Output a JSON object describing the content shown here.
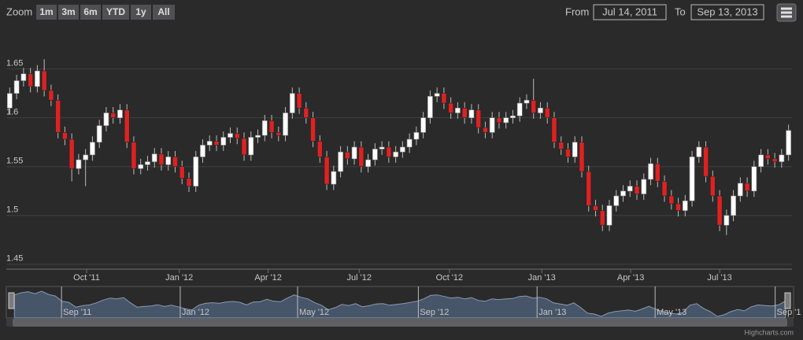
{
  "chart_data": {
    "type": "candlestick",
    "range_selector": {
      "zoom_label": "Zoom",
      "buttons": [
        "1m",
        "3m",
        "6m",
        "YTD",
        "1y",
        "All"
      ],
      "from_label": "From",
      "from_value": "Jul 14, 2011",
      "to_label": "To",
      "to_value": "Sep 13, 2013"
    },
    "up_color": "#ffffff",
    "down_color": "#dd2222",
    "open": [
      1.61,
      1.625,
      1.638,
      1.645,
      1.632,
      1.648,
      1.628,
      1.618,
      1.585,
      1.578,
      1.548,
      1.557,
      1.562,
      1.575,
      1.592,
      1.605,
      1.6,
      1.608,
      1.575,
      1.548,
      1.552,
      1.555,
      1.563,
      1.552,
      1.56,
      1.55,
      1.538,
      1.53,
      1.56,
      1.572,
      1.576,
      1.572,
      1.58,
      1.584,
      1.579,
      1.562,
      1.58,
      1.582,
      1.597,
      1.585,
      1.582,
      1.605,
      1.625,
      1.61,
      1.6,
      1.576,
      1.56,
      1.532,
      1.545,
      1.565,
      1.558,
      1.57,
      1.55,
      1.557,
      1.568,
      1.57,
      1.56,
      1.565,
      1.57,
      1.578,
      1.585,
      1.6,
      1.622,
      1.625,
      1.615,
      1.605,
      1.61,
      1.6,
      1.608,
      1.59,
      1.585,
      1.6,
      1.595,
      1.6,
      1.602,
      1.615,
      1.618,
      1.605,
      1.61,
      1.6,
      1.575,
      1.568,
      1.56,
      1.575,
      1.545,
      1.51,
      1.505,
      1.49,
      1.51,
      1.52,
      1.525,
      1.53,
      1.522,
      1.537,
      1.553,
      1.535,
      1.52,
      1.512,
      1.505,
      1.515,
      1.56,
      1.57,
      1.54,
      1.52,
      1.49,
      1.5,
      1.52,
      1.533,
      1.525,
      1.55,
      1.562,
      1.558,
      1.555,
      1.562
    ],
    "high": [
      1.631,
      1.644,
      1.651,
      1.651,
      1.654,
      1.66,
      1.634,
      1.624,
      1.591,
      1.584,
      1.563,
      1.568,
      1.581,
      1.598,
      1.611,
      1.611,
      1.614,
      1.614,
      1.581,
      1.558,
      1.561,
      1.569,
      1.569,
      1.566,
      1.566,
      1.556,
      1.544,
      1.566,
      1.578,
      1.582,
      1.582,
      1.586,
      1.59,
      1.59,
      1.585,
      1.586,
      1.588,
      1.603,
      1.603,
      1.591,
      1.611,
      1.631,
      1.631,
      1.616,
      1.606,
      1.582,
      1.566,
      1.551,
      1.571,
      1.571,
      1.576,
      1.576,
      1.563,
      1.574,
      1.576,
      1.576,
      1.571,
      1.576,
      1.584,
      1.591,
      1.606,
      1.628,
      1.631,
      1.631,
      1.621,
      1.616,
      1.616,
      1.614,
      1.614,
      1.596,
      1.606,
      1.606,
      1.606,
      1.608,
      1.621,
      1.624,
      1.64,
      1.616,
      1.616,
      1.606,
      1.581,
      1.574,
      1.581,
      1.581,
      1.551,
      1.516,
      1.511,
      1.516,
      1.526,
      1.531,
      1.536,
      1.536,
      1.543,
      1.559,
      1.559,
      1.541,
      1.526,
      1.518,
      1.521,
      1.566,
      1.576,
      1.576,
      1.546,
      1.526,
      1.506,
      1.526,
      1.539,
      1.539,
      1.556,
      1.568,
      1.568,
      1.564,
      1.568,
      1.593
    ],
    "low": [
      1.604,
      1.619,
      1.632,
      1.626,
      1.626,
      1.622,
      1.612,
      1.579,
      1.572,
      1.535,
      1.542,
      1.53,
      1.556,
      1.569,
      1.586,
      1.594,
      1.594,
      1.569,
      1.542,
      1.542,
      1.546,
      1.549,
      1.546,
      1.546,
      1.544,
      1.532,
      1.524,
      1.524,
      1.554,
      1.566,
      1.566,
      1.566,
      1.574,
      1.573,
      1.556,
      1.556,
      1.574,
      1.576,
      1.579,
      1.576,
      1.576,
      1.599,
      1.604,
      1.594,
      1.57,
      1.554,
      1.526,
      1.526,
      1.539,
      1.552,
      1.552,
      1.544,
      1.544,
      1.551,
      1.562,
      1.554,
      1.554,
      1.559,
      1.564,
      1.572,
      1.579,
      1.594,
      1.616,
      1.609,
      1.599,
      1.599,
      1.594,
      1.594,
      1.584,
      1.579,
      1.579,
      1.589,
      1.589,
      1.594,
      1.596,
      1.609,
      1.599,
      1.599,
      1.594,
      1.569,
      1.562,
      1.554,
      1.554,
      1.539,
      1.504,
      1.499,
      1.484,
      1.484,
      1.504,
      1.514,
      1.519,
      1.516,
      1.516,
      1.531,
      1.529,
      1.514,
      1.506,
      1.499,
      1.499,
      1.509,
      1.554,
      1.534,
      1.514,
      1.484,
      1.48,
      1.494,
      1.514,
      1.519,
      1.519,
      1.544,
      1.552,
      1.549,
      1.549,
      1.556
    ],
    "close": [
      1.625,
      1.638,
      1.645,
      1.632,
      1.648,
      1.628,
      1.618,
      1.585,
      1.578,
      1.548,
      1.557,
      1.562,
      1.575,
      1.592,
      1.605,
      1.6,
      1.608,
      1.575,
      1.548,
      1.552,
      1.555,
      1.563,
      1.552,
      1.56,
      1.55,
      1.538,
      1.53,
      1.56,
      1.572,
      1.576,
      1.572,
      1.58,
      1.584,
      1.579,
      1.562,
      1.58,
      1.582,
      1.597,
      1.585,
      1.582,
      1.605,
      1.625,
      1.61,
      1.6,
      1.576,
      1.56,
      1.532,
      1.545,
      1.565,
      1.558,
      1.57,
      1.55,
      1.557,
      1.568,
      1.57,
      1.56,
      1.565,
      1.57,
      1.578,
      1.585,
      1.6,
      1.622,
      1.625,
      1.615,
      1.605,
      1.61,
      1.6,
      1.608,
      1.59,
      1.585,
      1.6,
      1.595,
      1.6,
      1.602,
      1.615,
      1.618,
      1.605,
      1.61,
      1.6,
      1.575,
      1.568,
      1.56,
      1.575,
      1.545,
      1.51,
      1.505,
      1.49,
      1.51,
      1.52,
      1.525,
      1.53,
      1.522,
      1.537,
      1.553,
      1.535,
      1.52,
      1.512,
      1.505,
      1.515,
      1.56,
      1.57,
      1.54,
      1.52,
      1.49,
      1.5,
      1.52,
      1.533,
      1.525,
      1.55,
      1.562,
      1.558,
      1.555,
      1.562,
      1.587
    ],
    "xlim": [
      -0.5,
      113.5
    ],
    "xticks": [
      {
        "value": 11.15,
        "label": "Oct '11"
      },
      {
        "value": 24.6,
        "label": "Jan '12"
      },
      {
        "value": 37.5,
        "label": "Apr '12"
      },
      {
        "value": 50.7,
        "label": "Jul '12"
      },
      {
        "value": 63.8,
        "label": "Oct '12"
      },
      {
        "value": 77.2,
        "label": "Jan '13"
      },
      {
        "value": 90.1,
        "label": "Apr '13"
      },
      {
        "value": 103.0,
        "label": "Jul '13"
      }
    ],
    "ylim": [
      1.445,
      1.69
    ],
    "yticks": [
      1.45,
      1.5,
      1.55,
      1.6,
      1.65
    ],
    "grid": true,
    "navigator": {
      "color": "#4a5a70",
      "xticks": [
        {
          "value": 6.9,
          "label": "Sep '11"
        },
        {
          "value": 24.3,
          "label": "Jan '12"
        },
        {
          "value": 41.5,
          "label": "May '12"
        },
        {
          "value": 59.2,
          "label": "Sep '12"
        },
        {
          "value": 76.6,
          "label": "Jan '13"
        },
        {
          "value": 93.9,
          "label": "May '13"
        },
        {
          "value": 111.5,
          "label": "Sep '1"
        }
      ]
    },
    "credits": "Highcharts.com"
  }
}
